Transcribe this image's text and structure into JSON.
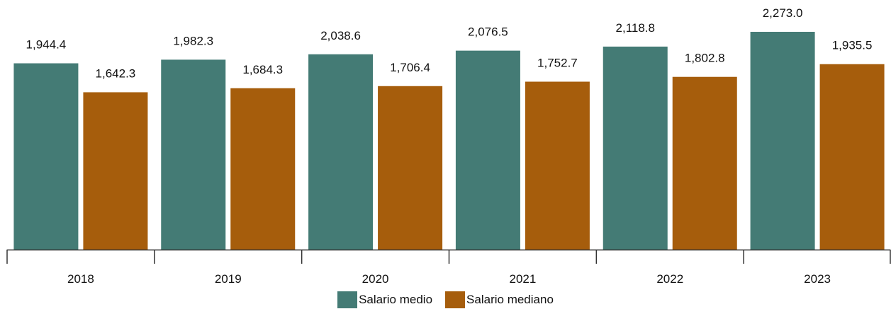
{
  "chart_data": {
    "type": "bar",
    "title": "",
    "xlabel": "",
    "ylabel": "",
    "categories": [
      "2018",
      "2019",
      "2020",
      "2021",
      "2022",
      "2023"
    ],
    "series": [
      {
        "name": "Salario medio",
        "color": "#447b75",
        "values": [
          1944.4,
          1982.3,
          2038.6,
          2076.5,
          2118.8,
          2273.0
        ],
        "labels": [
          "1,944.4",
          "1,982.3",
          "2,038.6",
          "2,076.5",
          "2,118.8",
          "2,273.0"
        ]
      },
      {
        "name": "Salario mediano",
        "color": "#a65d0c",
        "values": [
          1642.3,
          1684.3,
          1706.4,
          1752.7,
          1802.8,
          1935.5
        ],
        "labels": [
          "1,642.3",
          "1,684.3",
          "1,706.4",
          "1,752.7",
          "1,802.8",
          "1,935.5"
        ]
      }
    ],
    "ylim": [
      0,
      2273.0
    ],
    "grid": false,
    "legend": "bottom-center"
  }
}
